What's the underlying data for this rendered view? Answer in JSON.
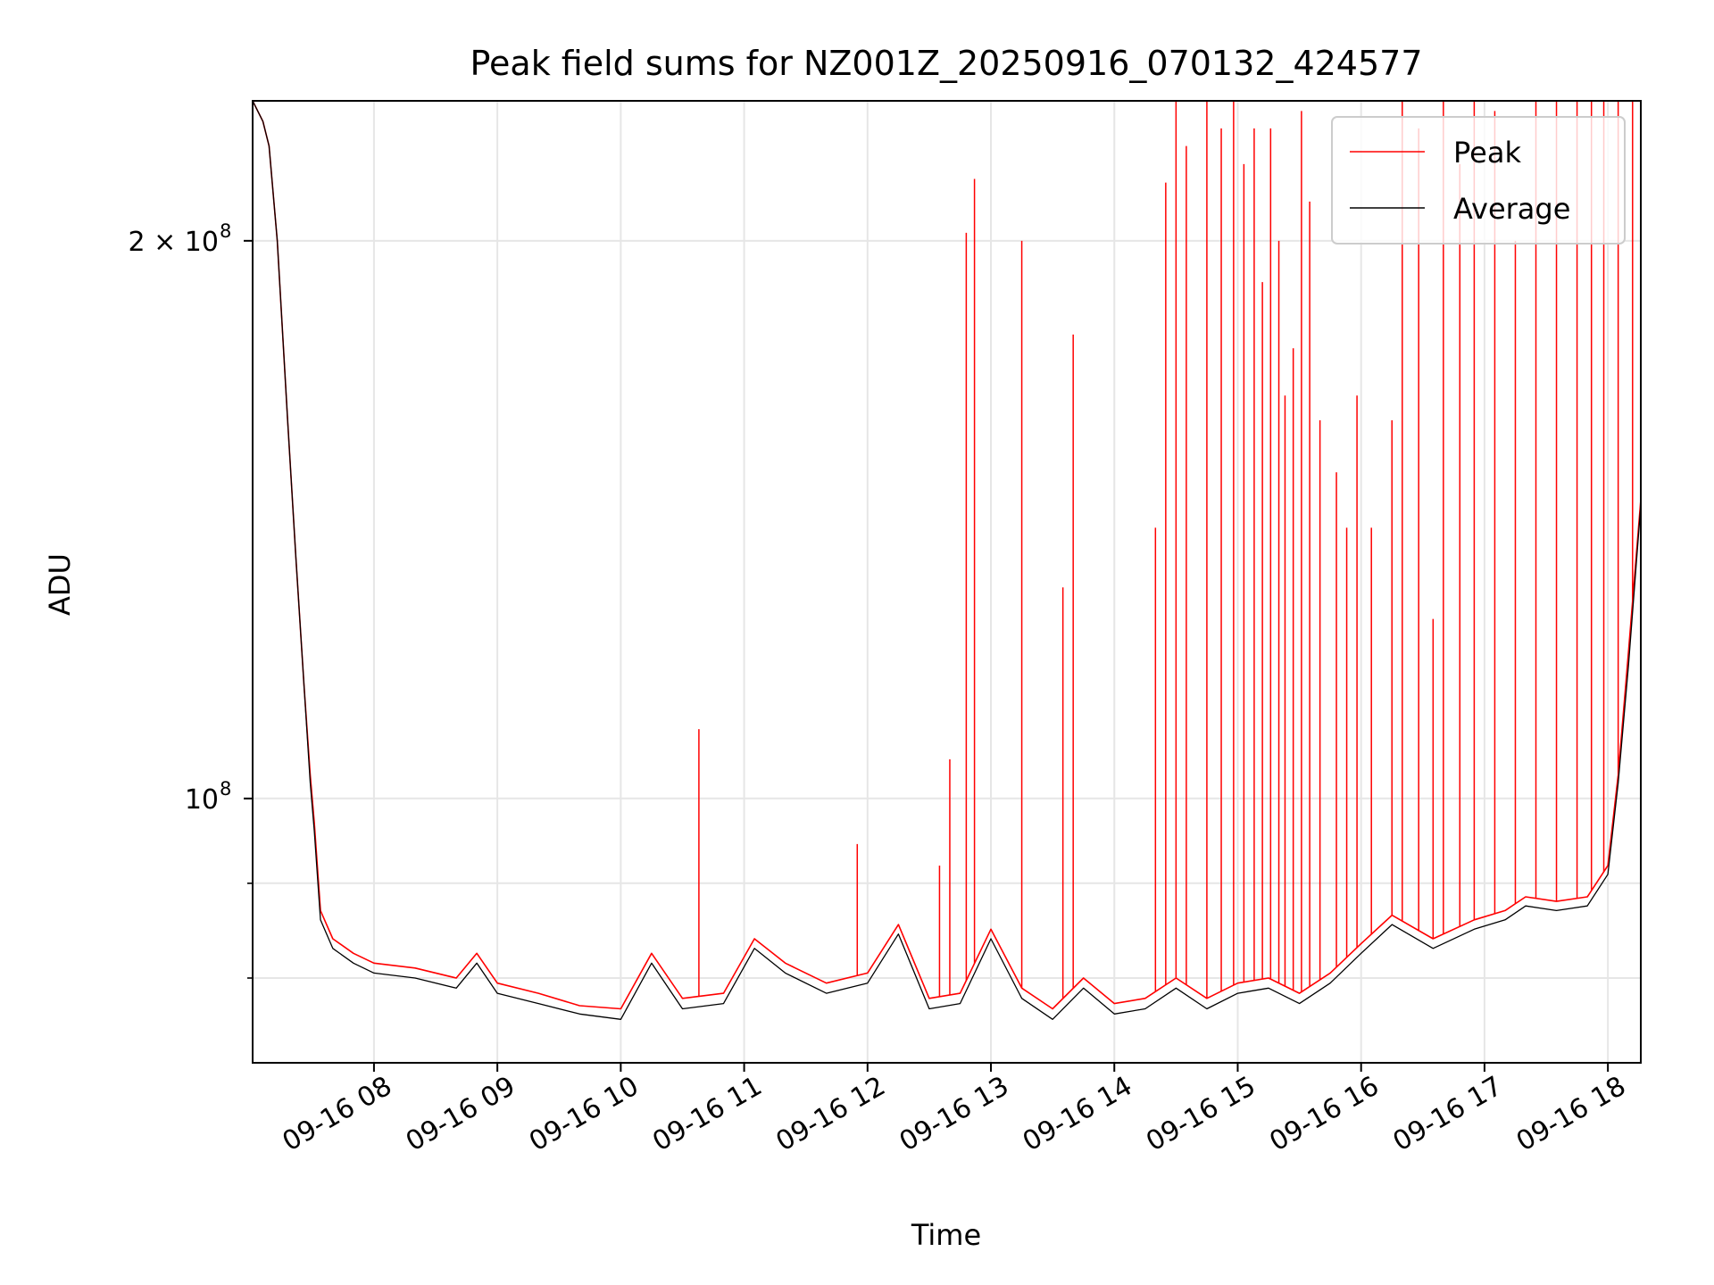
{
  "chart_data": {
    "type": "line",
    "title": "Peak field sums for NZ001Z_20250916_070132_424577",
    "xlabel": "Time",
    "ylabel": "ADU",
    "yscale": "log",
    "grid": true,
    "legend_position": "top-right",
    "xlim": [
      "2025-09-16 07:01",
      "2025-09-16 18:16"
    ],
    "ylim": [
      72000000,
      238000000
    ],
    "x_ticks": [
      {
        "value": "2025-09-16 08:00",
        "label": "09-16 08"
      },
      {
        "value": "2025-09-16 09:00",
        "label": "09-16 09"
      },
      {
        "value": "2025-09-16 10:00",
        "label": "09-16 10"
      },
      {
        "value": "2025-09-16 11:00",
        "label": "09-16 11"
      },
      {
        "value": "2025-09-16 12:00",
        "label": "09-16 12"
      },
      {
        "value": "2025-09-16 13:00",
        "label": "09-16 13"
      },
      {
        "value": "2025-09-16 14:00",
        "label": "09-16 14"
      },
      {
        "value": "2025-09-16 15:00",
        "label": "09-16 15"
      },
      {
        "value": "2025-09-16 16:00",
        "label": "09-16 16"
      },
      {
        "value": "2025-09-16 17:00",
        "label": "09-16 17"
      },
      {
        "value": "2025-09-16 18:00",
        "label": "09-16 18"
      }
    ],
    "y_ticks": [
      {
        "value": 100000000,
        "label": "10",
        "exp": "8"
      },
      {
        "value": 200000000,
        "label": "2 × 10",
        "exp": "8"
      }
    ],
    "y_minor_ticks": [
      80000000,
      90000000
    ],
    "series": [
      {
        "name": "Peak",
        "color": "#ff0000",
        "points": [
          [
            "2025-09-16 07:01",
            238000000
          ],
          [
            "2025-09-16 07:06",
            232000000
          ],
          [
            "2025-09-16 07:09",
            225000000
          ],
          [
            "2025-09-16 07:13",
            200000000
          ],
          [
            "2025-09-16 07:18",
            160000000
          ],
          [
            "2025-09-16 07:22",
            135000000
          ],
          [
            "2025-09-16 07:26",
            115000000
          ],
          [
            "2025-09-16 07:29",
            103000000
          ],
          [
            "2025-09-16 07:31",
            97000000
          ],
          [
            "2025-09-16 07:34",
            87000000
          ],
          [
            "2025-09-16 07:40",
            84000000
          ],
          [
            "2025-09-16 07:50",
            82500000
          ],
          [
            "2025-09-16 08:00",
            81500000
          ],
          [
            "2025-09-16 08:20",
            81000000
          ],
          [
            "2025-09-16 08:40",
            80000000
          ],
          [
            "2025-09-16 08:50",
            82500000
          ],
          [
            "2025-09-16 09:00",
            79500000
          ],
          [
            "2025-09-16 09:20",
            78500000
          ],
          [
            "2025-09-16 09:40",
            77300000
          ],
          [
            "2025-09-16 10:00",
            77000000
          ],
          [
            "2025-09-16 10:15",
            82500000
          ],
          [
            "2025-09-16 10:30",
            78000000
          ],
          [
            "2025-09-16 10:50",
            78500000
          ],
          [
            "2025-09-16 11:05",
            84000000
          ],
          [
            "2025-09-16 11:20",
            81500000
          ],
          [
            "2025-09-16 11:40",
            79500000
          ],
          [
            "2025-09-16 12:00",
            80500000
          ],
          [
            "2025-09-16 12:15",
            85500000
          ],
          [
            "2025-09-16 12:30",
            78000000
          ],
          [
            "2025-09-16 12:45",
            78500000
          ],
          [
            "2025-09-16 13:00",
            85000000
          ],
          [
            "2025-09-16 13:15",
            79000000
          ],
          [
            "2025-09-16 13:30",
            77000000
          ],
          [
            "2025-09-16 13:45",
            80000000
          ],
          [
            "2025-09-16 14:00",
            77500000
          ],
          [
            "2025-09-16 14:15",
            78000000
          ],
          [
            "2025-09-16 14:30",
            80000000
          ],
          [
            "2025-09-16 14:45",
            78000000
          ],
          [
            "2025-09-16 15:00",
            79500000
          ],
          [
            "2025-09-16 15:15",
            80000000
          ],
          [
            "2025-09-16 15:30",
            78500000
          ],
          [
            "2025-09-16 15:45",
            80500000
          ],
          [
            "2025-09-16 16:00",
            83500000
          ],
          [
            "2025-09-16 16:15",
            86500000
          ],
          [
            "2025-09-16 16:35",
            84000000
          ],
          [
            "2025-09-16 16:55",
            86000000
          ],
          [
            "2025-09-16 17:10",
            87000000
          ],
          [
            "2025-09-16 17:20",
            88500000
          ],
          [
            "2025-09-16 17:35",
            88000000
          ],
          [
            "2025-09-16 17:50",
            88500000
          ],
          [
            "2025-09-16 18:00",
            92000000
          ],
          [
            "2025-09-16 18:05",
            103000000
          ],
          [
            "2025-09-16 18:10",
            120000000
          ],
          [
            "2025-09-16 18:16",
            145000000
          ]
        ],
        "spikes": [
          [
            "2025-09-16 10:38",
            109000000
          ],
          [
            "2025-09-16 11:55",
            94500000
          ],
          [
            "2025-09-16 12:35",
            92000000
          ],
          [
            "2025-09-16 12:40",
            105000000
          ],
          [
            "2025-09-16 12:48",
            202000000
          ],
          [
            "2025-09-16 12:52",
            216000000
          ],
          [
            "2025-09-16 13:15",
            200000000
          ],
          [
            "2025-09-16 13:35",
            130000000
          ],
          [
            "2025-09-16 13:40",
            178000000
          ],
          [
            "2025-09-16 14:20",
            140000000
          ],
          [
            "2025-09-16 14:25",
            215000000
          ],
          [
            "2025-09-16 14:30",
            238000000
          ],
          [
            "2025-09-16 14:35",
            225000000
          ],
          [
            "2025-09-16 14:45",
            238000000
          ],
          [
            "2025-09-16 14:52",
            230000000
          ],
          [
            "2025-09-16 14:58",
            238000000
          ],
          [
            "2025-09-16 15:03",
            220000000
          ],
          [
            "2025-09-16 15:08",
            230000000
          ],
          [
            "2025-09-16 15:12",
            190000000
          ],
          [
            "2025-09-16 15:16",
            230000000
          ],
          [
            "2025-09-16 15:20",
            200000000
          ],
          [
            "2025-09-16 15:23",
            165000000
          ],
          [
            "2025-09-16 15:27",
            175000000
          ],
          [
            "2025-09-16 15:31",
            235000000
          ],
          [
            "2025-09-16 15:35",
            210000000
          ],
          [
            "2025-09-16 15:40",
            160000000
          ],
          [
            "2025-09-16 15:48",
            150000000
          ],
          [
            "2025-09-16 15:53",
            140000000
          ],
          [
            "2025-09-16 15:58",
            165000000
          ],
          [
            "2025-09-16 16:05",
            140000000
          ],
          [
            "2025-09-16 16:15",
            160000000
          ],
          [
            "2025-09-16 16:20",
            238000000
          ],
          [
            "2025-09-16 16:28",
            230000000
          ],
          [
            "2025-09-16 16:35",
            125000000
          ],
          [
            "2025-09-16 16:40",
            238000000
          ],
          [
            "2025-09-16 16:48",
            220000000
          ],
          [
            "2025-09-16 16:55",
            238000000
          ],
          [
            "2025-09-16 17:05",
            235000000
          ],
          [
            "2025-09-16 17:15",
            200000000
          ],
          [
            "2025-09-16 17:25",
            238000000
          ],
          [
            "2025-09-16 17:35",
            238000000
          ],
          [
            "2025-09-16 17:45",
            238000000
          ],
          [
            "2025-09-16 17:52",
            238000000
          ],
          [
            "2025-09-16 17:58",
            238000000
          ],
          [
            "2025-09-16 18:05",
            238000000
          ],
          [
            "2025-09-16 18:12",
            238000000
          ]
        ]
      },
      {
        "name": "Average",
        "color": "#000000",
        "points": [
          [
            "2025-09-16 07:01",
            238000000
          ],
          [
            "2025-09-16 07:06",
            232000000
          ],
          [
            "2025-09-16 07:09",
            225000000
          ],
          [
            "2025-09-16 07:13",
            200000000
          ],
          [
            "2025-09-16 07:18",
            160000000
          ],
          [
            "2025-09-16 07:22",
            135000000
          ],
          [
            "2025-09-16 07:26",
            115000000
          ],
          [
            "2025-09-16 07:29",
            102000000
          ],
          [
            "2025-09-16 07:31",
            96000000
          ],
          [
            "2025-09-16 07:34",
            86000000
          ],
          [
            "2025-09-16 07:40",
            83000000
          ],
          [
            "2025-09-16 07:50",
            81500000
          ],
          [
            "2025-09-16 08:00",
            80500000
          ],
          [
            "2025-09-16 08:20",
            80000000
          ],
          [
            "2025-09-16 08:40",
            79000000
          ],
          [
            "2025-09-16 08:50",
            81500000
          ],
          [
            "2025-09-16 09:00",
            78500000
          ],
          [
            "2025-09-16 09:20",
            77500000
          ],
          [
            "2025-09-16 09:40",
            76500000
          ],
          [
            "2025-09-16 10:00",
            76000000
          ],
          [
            "2025-09-16 10:15",
            81500000
          ],
          [
            "2025-09-16 10:30",
            77000000
          ],
          [
            "2025-09-16 10:50",
            77500000
          ],
          [
            "2025-09-16 11:05",
            83000000
          ],
          [
            "2025-09-16 11:20",
            80500000
          ],
          [
            "2025-09-16 11:40",
            78500000
          ],
          [
            "2025-09-16 12:00",
            79500000
          ],
          [
            "2025-09-16 12:15",
            84500000
          ],
          [
            "2025-09-16 12:30",
            77000000
          ],
          [
            "2025-09-16 12:45",
            77500000
          ],
          [
            "2025-09-16 13:00",
            84000000
          ],
          [
            "2025-09-16 13:15",
            78000000
          ],
          [
            "2025-09-16 13:30",
            76000000
          ],
          [
            "2025-09-16 13:45",
            79000000
          ],
          [
            "2025-09-16 14:00",
            76500000
          ],
          [
            "2025-09-16 14:15",
            77000000
          ],
          [
            "2025-09-16 14:30",
            79000000
          ],
          [
            "2025-09-16 14:45",
            77000000
          ],
          [
            "2025-09-16 15:00",
            78500000
          ],
          [
            "2025-09-16 15:15",
            79000000
          ],
          [
            "2025-09-16 15:30",
            77500000
          ],
          [
            "2025-09-16 15:45",
            79500000
          ],
          [
            "2025-09-16 16:00",
            82500000
          ],
          [
            "2025-09-16 16:15",
            85500000
          ],
          [
            "2025-09-16 16:35",
            83000000
          ],
          [
            "2025-09-16 16:55",
            85000000
          ],
          [
            "2025-09-16 17:10",
            86000000
          ],
          [
            "2025-09-16 17:20",
            87500000
          ],
          [
            "2025-09-16 17:35",
            87000000
          ],
          [
            "2025-09-16 17:50",
            87500000
          ],
          [
            "2025-09-16 18:00",
            91000000
          ],
          [
            "2025-09-16 18:05",
            102000000
          ],
          [
            "2025-09-16 18:10",
            118000000
          ],
          [
            "2025-09-16 18:16",
            144000000
          ]
        ]
      }
    ]
  }
}
